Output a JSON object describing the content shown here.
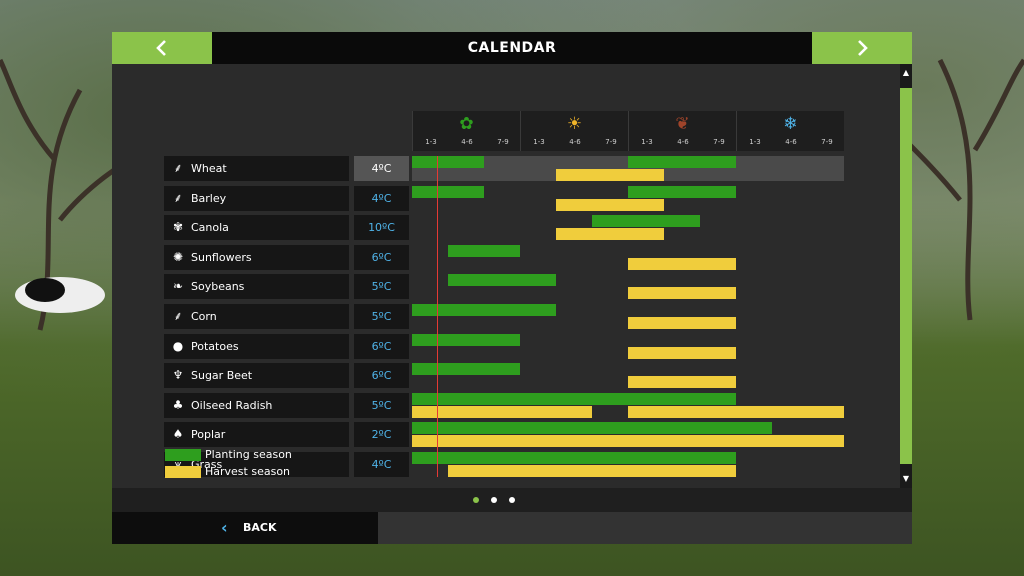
{
  "header": {
    "title": "CALENDAR",
    "prev_label": "<",
    "next_label": ">"
  },
  "seasons": [
    {
      "name": "spring",
      "icon": "flower-icon",
      "glyph": "✿",
      "color": "#2e9e1e",
      "months": [
        "1-3",
        "4-6",
        "7-9"
      ]
    },
    {
      "name": "summer",
      "icon": "sun-icon",
      "glyph": "☀",
      "color": "#f0b429",
      "months": [
        "1-3",
        "4-6",
        "7-9"
      ]
    },
    {
      "name": "autumn",
      "icon": "leaf-icon",
      "glyph": "❦",
      "color": "#a0442a",
      "months": [
        "1-3",
        "4-6",
        "7-9"
      ]
    },
    {
      "name": "winter",
      "icon": "snowflake-icon",
      "glyph": "❄",
      "color": "#4fb3e8",
      "months": [
        "1-3",
        "4-6",
        "7-9"
      ]
    }
  ],
  "crops": [
    {
      "name": "Wheat",
      "temp": "4ºC",
      "icon": "wheat-icon",
      "glyph": "⸙",
      "selected": true,
      "planting": [
        [
          0,
          2
        ],
        [
          6,
          9
        ]
      ],
      "harvest": [
        [
          4,
          7
        ]
      ]
    },
    {
      "name": "Barley",
      "temp": "4ºC",
      "icon": "barley-icon",
      "glyph": "⸙",
      "planting": [
        [
          0,
          2
        ],
        [
          6,
          9
        ]
      ],
      "harvest": [
        [
          4,
          7
        ]
      ]
    },
    {
      "name": "Canola",
      "temp": "10ºC",
      "icon": "canola-icon",
      "glyph": "✾",
      "planting": [
        [
          5,
          8
        ]
      ],
      "harvest": [
        [
          4,
          7
        ]
      ]
    },
    {
      "name": "Sunflowers",
      "temp": "6ºC",
      "icon": "sunflower-icon",
      "glyph": "✺",
      "planting": [
        [
          1,
          3
        ]
      ],
      "harvest": [
        [
          6,
          9
        ]
      ]
    },
    {
      "name": "Soybeans",
      "temp": "5ºC",
      "icon": "soybean-icon",
      "glyph": "❧",
      "planting": [
        [
          1,
          4
        ]
      ],
      "harvest": [
        [
          6,
          9
        ]
      ]
    },
    {
      "name": "Corn",
      "temp": "5ºC",
      "icon": "corn-icon",
      "glyph": "⸙",
      "planting": [
        [
          0,
          4
        ]
      ],
      "harvest": [
        [
          6,
          9
        ]
      ]
    },
    {
      "name": "Potatoes",
      "temp": "6ºC",
      "icon": "potato-icon",
      "glyph": "●",
      "planting": [
        [
          0,
          3
        ]
      ],
      "harvest": [
        [
          6,
          9
        ]
      ]
    },
    {
      "name": "Sugar Beet",
      "temp": "6ºC",
      "icon": "sugar-beet-icon",
      "glyph": "♆",
      "planting": [
        [
          0,
          3
        ]
      ],
      "harvest": [
        [
          6,
          9
        ]
      ]
    },
    {
      "name": "Oilseed Radish",
      "temp": "5ºC",
      "icon": "radish-icon",
      "glyph": "♣",
      "planting": [
        [
          0,
          9
        ]
      ],
      "harvest": [
        [
          0,
          5
        ],
        [
          6,
          12
        ]
      ]
    },
    {
      "name": "Poplar",
      "temp": "2ºC",
      "icon": "poplar-icon",
      "glyph": "♠",
      "planting": [
        [
          0,
          10
        ]
      ],
      "harvest": [
        [
          0,
          12
        ]
      ]
    },
    {
      "name": "Grass",
      "temp": "4ºC",
      "icon": "grass-icon",
      "glyph": "⩛",
      "planting": [
        [
          0,
          9
        ]
      ],
      "harvest": [
        [
          1,
          9
        ]
      ]
    }
  ],
  "legend": {
    "planting": "Planting season",
    "harvest": "Harvest season"
  },
  "colors": {
    "accent": "#8bc34a",
    "planting": "#2e9e1e",
    "harvest": "#f0cd3c",
    "now_line": "#e53935",
    "temp": "#4fb3e8"
  },
  "current_month_index": 0.7,
  "pagination": {
    "pages": 3,
    "active": 0
  },
  "footer": {
    "back_label": "BACK"
  }
}
